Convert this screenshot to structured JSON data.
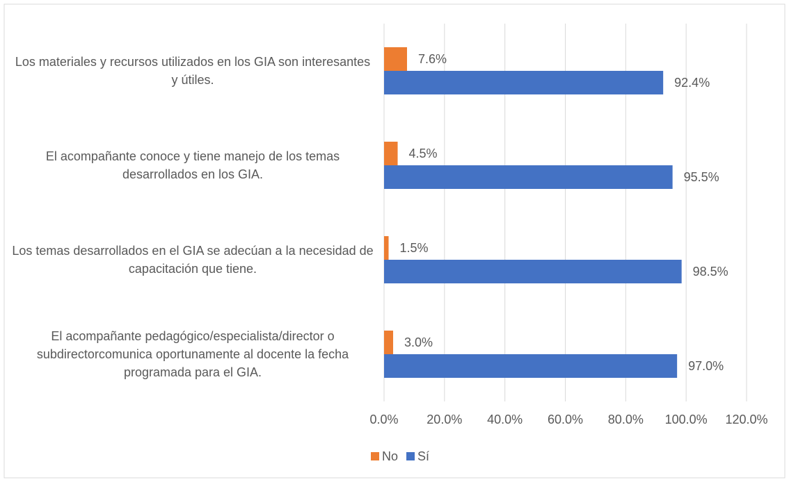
{
  "chart_data": {
    "type": "barh",
    "categories": [
      "Los materiales y recursos utilizados en los GIA son interesantes y útiles.",
      "El acompañante conoce y tiene manejo de los temas desarrollados en los GIA.",
      "Los temas desarrollados en el GIA se adecúan a la necesidad de capacitación que tiene.",
      "El acompañante pedagógico/especialista/director o subdirectorcomunica oportunamente al docente la fecha programada para el GIA."
    ],
    "series": [
      {
        "name": "No",
        "color": "#ed7d31",
        "values": [
          7.6,
          4.5,
          1.5,
          3.0
        ],
        "value_labels": [
          "7.6%",
          "4.5%",
          "1.5%",
          "3.0%"
        ]
      },
      {
        "name": "Sí",
        "color": "#4472c4",
        "values": [
          92.4,
          95.5,
          98.5,
          97.0
        ],
        "value_labels": [
          "92.4%",
          "95.5%",
          "98.5%",
          "97.0%"
        ]
      }
    ],
    "xlim": [
      0,
      120
    ],
    "xticks": [
      {
        "value": 0,
        "label": "0.0%"
      },
      {
        "value": 20,
        "label": "20.0%"
      },
      {
        "value": 40,
        "label": "40.0%"
      },
      {
        "value": 60,
        "label": "60.0%"
      },
      {
        "value": 80,
        "label": "80.0%"
      },
      {
        "value": 100,
        "label": "100.0%"
      },
      {
        "value": 120,
        "label": "120.0%"
      }
    ],
    "grid": true,
    "legend": "bottom"
  }
}
